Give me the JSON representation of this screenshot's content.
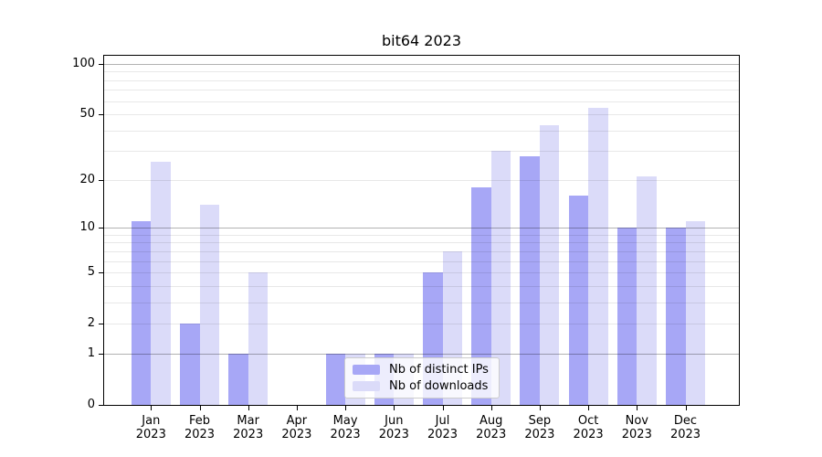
{
  "chart_data": {
    "type": "bar",
    "title": "bit64 2023",
    "year": "2023",
    "months": [
      "Jan",
      "Feb",
      "Mar",
      "Apr",
      "May",
      "Jun",
      "Jul",
      "Aug",
      "Sep",
      "Oct",
      "Nov",
      "Dec"
    ],
    "categories": [
      "Jan 2023",
      "Feb 2023",
      "Mar 2023",
      "Apr 2023",
      "May 2023",
      "Jun 2023",
      "Jul 2023",
      "Aug 2023",
      "Sep 2023",
      "Oct 2023",
      "Nov 2023",
      "Dec 2023"
    ],
    "series": [
      {
        "key": "distinct-ips",
        "name": "Nb of distinct IPs",
        "color": "#a7a7f6",
        "values": [
          11,
          2,
          1,
          0,
          1,
          1,
          5,
          18,
          28,
          16,
          10,
          10
        ]
      },
      {
        "key": "downloads",
        "name": "Nb of downloads",
        "color": "#dbdbf9",
        "values": [
          26,
          14,
          5,
          0,
          1,
          1,
          7,
          30,
          43,
          55,
          21,
          11
        ]
      }
    ],
    "y_axis": {
      "scale": "log10(1+v)",
      "ticks": [
        0,
        1,
        2,
        5,
        10,
        20,
        50,
        100
      ],
      "minor_gridlines": [
        2,
        3,
        4,
        5,
        6,
        7,
        8,
        9,
        20,
        30,
        40,
        50,
        60,
        70,
        80,
        90
      ],
      "decade_gridlines": [
        1,
        10,
        100
      ],
      "range": [
        0,
        115
      ]
    },
    "legend": {
      "position": "lower-center",
      "entries": [
        "Nb of distinct IPs",
        "Nb of downloads"
      ]
    },
    "grid": true,
    "colors": {
      "background": "#ffffff",
      "spine": "#000000",
      "minor_gridline": "#e8e8e8",
      "decade_gridline": "#aaaaaa",
      "legend_border": "#cccccc"
    }
  }
}
